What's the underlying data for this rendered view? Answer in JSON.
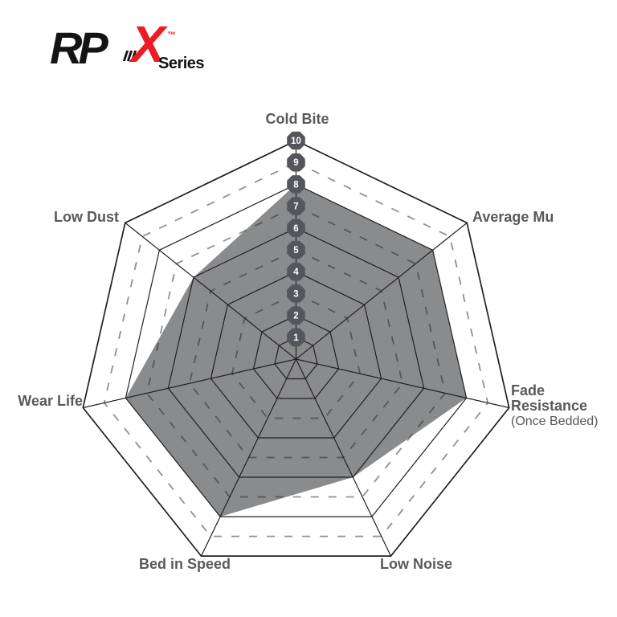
{
  "logo": {
    "brand": "RP",
    "model": "X",
    "trademark": "™",
    "series_label": "Series",
    "brand_color": "#161316",
    "accent_color": "#ED1C24"
  },
  "chart_data": {
    "type": "radar",
    "title": "",
    "axes": [
      {
        "label": "Cold Bite",
        "value": 8
      },
      {
        "label": "Average Mu",
        "value": 8
      },
      {
        "label": "Fade Resistance",
        "sublabel": "(Once Bedded)",
        "value": 8
      },
      {
        "label": "Low Noise",
        "value": 6
      },
      {
        "label": "Bed in Speed",
        "value": 8
      },
      {
        "label": "Wear Life",
        "value": 8
      },
      {
        "label": "Low Dust",
        "value": 6
      }
    ],
    "scale": {
      "min": 0,
      "max": 10,
      "rings": 10,
      "tick_labels": [
        "1",
        "2",
        "3",
        "4",
        "5",
        "6",
        "7",
        "8",
        "9",
        "10"
      ]
    },
    "grid": {
      "solid_rings": [
        1,
        2,
        4,
        6,
        8,
        10
      ],
      "dashed_rings": [
        3,
        5,
        7,
        9
      ]
    },
    "legend_position": "none",
    "fill_color": "#8A8B8D",
    "grid_color": "#231F20",
    "dashed_grid_color": "rgba(35,31,32,0.5)",
    "badge_color": "#55565B",
    "badge_text_color": "#FFFFFF",
    "label_color": "#58595B"
  }
}
